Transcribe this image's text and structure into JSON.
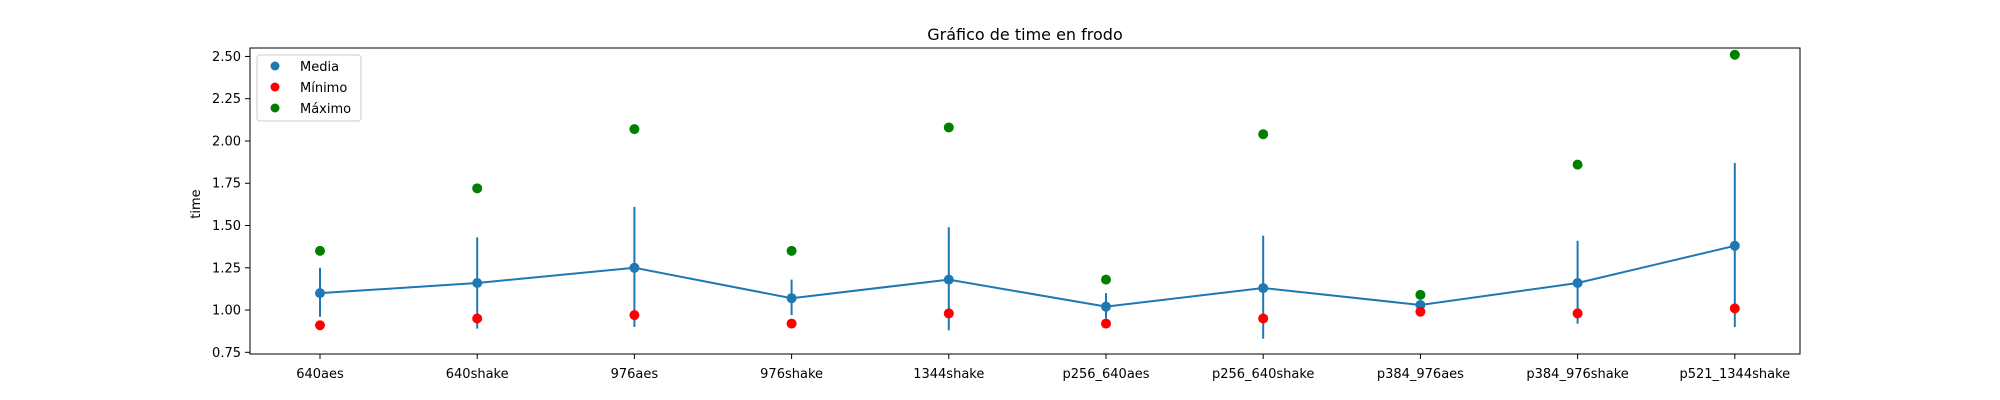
{
  "chart_data": {
    "type": "line",
    "title": "Gráfico de time en frodo",
    "xlabel": "",
    "ylabel": "time",
    "ylim": [
      0.74,
      2.55
    ],
    "yticks": [
      "0.75",
      "1.00",
      "1.25",
      "1.50",
      "1.75",
      "2.00",
      "2.25",
      "2.50"
    ],
    "categories": [
      "640aes",
      "640shake",
      "976aes",
      "976shake",
      "1344shake",
      "p256_640aes",
      "p256_640shake",
      "p384_976aes",
      "p384_976shake",
      "p521_1344shake"
    ],
    "grid": false,
    "legend_position": "top-left",
    "series": [
      {
        "name": "Media",
        "color": "#1f77b4",
        "values": [
          1.1,
          1.16,
          1.25,
          1.07,
          1.18,
          1.02,
          1.13,
          1.03,
          1.16,
          1.38
        ],
        "error_low": [
          0.96,
          0.89,
          0.9,
          0.97,
          0.88,
          0.95,
          0.83,
          1.02,
          0.92,
          0.9
        ],
        "error_high": [
          1.25,
          1.43,
          1.61,
          1.18,
          1.49,
          1.1,
          1.44,
          1.05,
          1.41,
          1.87
        ]
      },
      {
        "name": "Mínimo",
        "color": "#ff0000",
        "values": [
          0.91,
          0.95,
          0.97,
          0.92,
          0.98,
          0.92,
          0.95,
          0.99,
          0.98,
          1.01
        ]
      },
      {
        "name": "Máximo",
        "color": "#008000",
        "values": [
          1.35,
          1.72,
          2.07,
          1.35,
          2.08,
          1.18,
          2.04,
          1.09,
          1.86,
          2.51
        ]
      }
    ]
  }
}
